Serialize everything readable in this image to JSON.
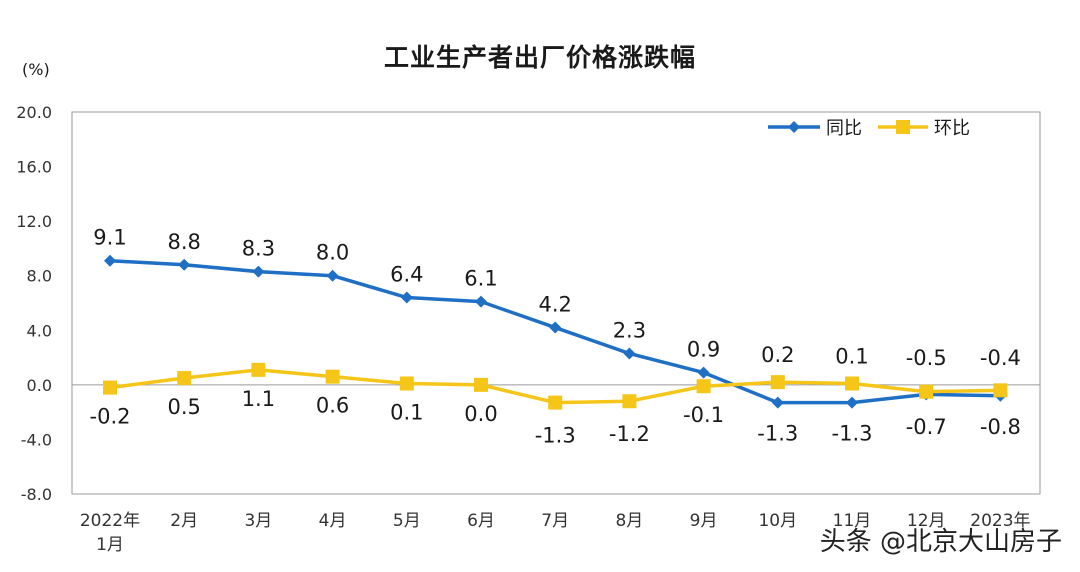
{
  "watermark": "头条 @北京大山房子",
  "chart_data": {
    "type": "line",
    "title": "工业生产者出厂价格涨跌幅",
    "unit": "(%)",
    "categories": [
      [
        "2022年",
        "1月"
      ],
      [
        "2月"
      ],
      [
        "3月"
      ],
      [
        "4月"
      ],
      [
        "5月"
      ],
      [
        "6月"
      ],
      [
        "7月"
      ],
      [
        "8月"
      ],
      [
        "9月"
      ],
      [
        "10月"
      ],
      [
        "11月"
      ],
      [
        "12月"
      ],
      [
        "2023年"
      ]
    ],
    "ylim": [
      -8.0,
      20.0
    ],
    "yticks": [
      "20.0",
      "16.0",
      "12.0",
      "8.0",
      "4.0",
      "0.0",
      "-4.0",
      "-8.0"
    ],
    "grid": false,
    "legend_position": "top-right",
    "series": [
      {
        "name": "同比",
        "color": "#1f6fc5",
        "marker": "diamond",
        "values": [
          9.1,
          8.8,
          8.3,
          8.0,
          6.4,
          6.1,
          4.2,
          2.3,
          0.9,
          -1.3,
          -1.3,
          -0.7,
          -0.8
        ],
        "labels": [
          "9.1",
          "8.8",
          "8.3",
          "8.0",
          "6.4",
          "6.1",
          "4.2",
          "2.3",
          "0.9",
          "-1.3",
          "-1.3",
          "-0.7",
          "-0.8"
        ]
      },
      {
        "name": "环比",
        "color": "#f5c518",
        "marker": "square",
        "values": [
          -0.2,
          0.5,
          1.1,
          0.6,
          0.1,
          0.0,
          -1.3,
          -1.2,
          -0.1,
          0.2,
          0.1,
          -0.5,
          -0.4
        ],
        "labels": [
          "-0.2",
          "0.5",
          "1.1",
          "0.6",
          "0.1",
          "0.0",
          "-1.3",
          "-1.2",
          "-0.1",
          "0.2",
          "0.1",
          "-0.5",
          "-0.4"
        ]
      }
    ]
  }
}
